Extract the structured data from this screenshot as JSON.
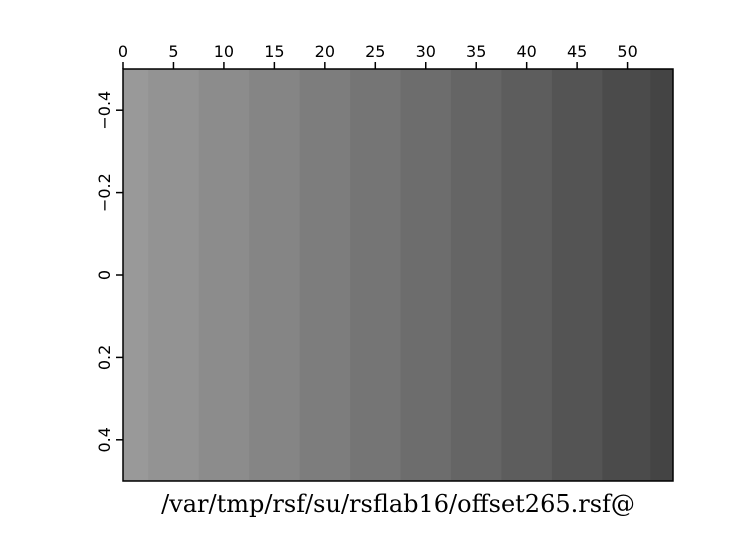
{
  "chart_data": {
    "type": "heatmap",
    "title": "/var/tmp/rsf/su/rsflab16/offset265.rsf@",
    "xlabel": "",
    "ylabel": "",
    "xlim": [
      0,
      54.5
    ],
    "ylim": [
      -0.5,
      0.5
    ],
    "y_inverted": true,
    "grid": false,
    "colormap": "grayscale",
    "x_ticks": [
      0,
      5,
      10,
      15,
      20,
      25,
      30,
      35,
      40,
      45,
      50
    ],
    "x_tick_labels": [
      "0",
      "5",
      "10",
      "15",
      "20",
      "25",
      "30",
      "35",
      "40",
      "45",
      "50"
    ],
    "y_ticks": [
      -0.4,
      -0.2,
      0,
      0.2,
      0.4
    ],
    "y_tick_labels": [
      "−0.4",
      "−0.2",
      "0",
      "0.2",
      "0.4"
    ],
    "columns_x": [
      0,
      5,
      10,
      15,
      20,
      25,
      30,
      35,
      40,
      45,
      50,
      54.5
    ],
    "column_colors": [
      "#999999",
      "#939393",
      "#8c8c8c",
      "#858585",
      "#7d7d7d",
      "#757575",
      "#6d6d6d",
      "#656565",
      "#5d5d5d",
      "#545454",
      "#4b4b4b",
      "#444444"
    ]
  }
}
